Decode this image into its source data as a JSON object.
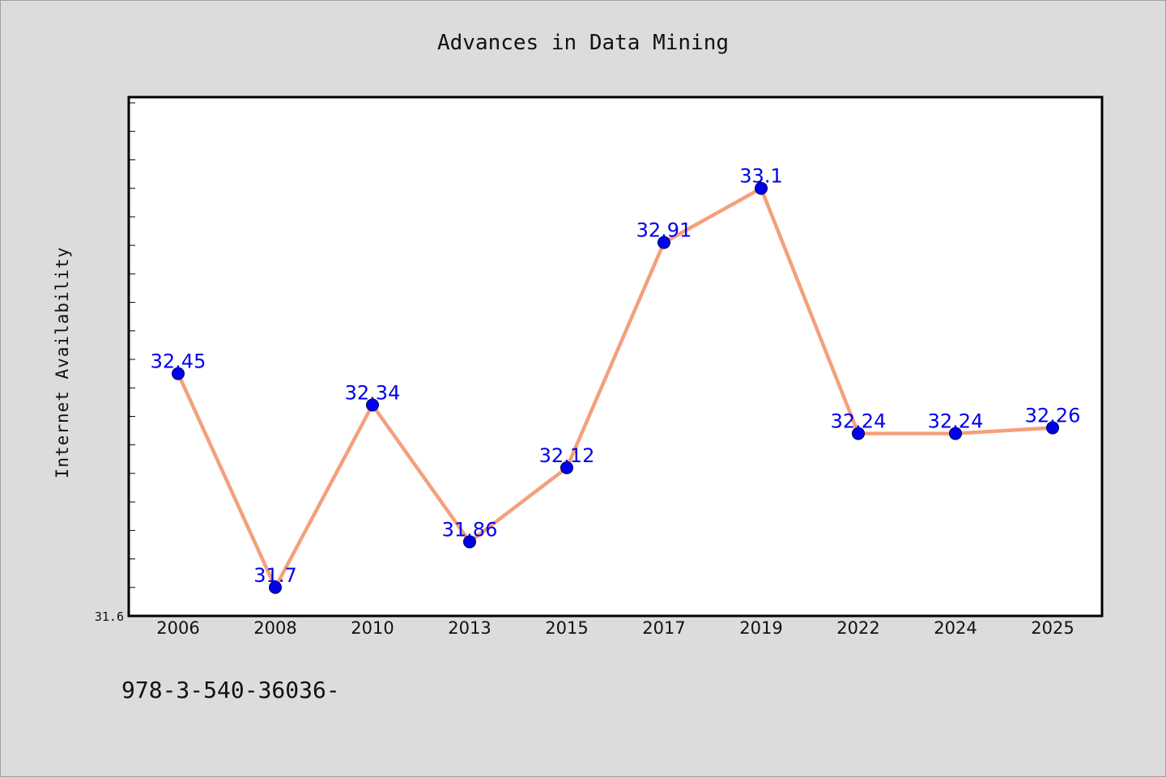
{
  "chart_data": {
    "type": "line",
    "title": "Advances in Data Mining",
    "xlabel": "",
    "ylabel": "Internet Availability",
    "categories": [
      "2006",
      "2008",
      "2010",
      "2013",
      "2015",
      "2017",
      "2019",
      "2022",
      "2024",
      "2025"
    ],
    "series": [
      {
        "values": [
          32.45,
          31.7,
          32.34,
          31.86,
          32.12,
          32.91,
          33.1,
          32.24,
          32.24,
          32.26
        ],
        "data_labels": [
          "32.45",
          "31.7",
          "32.34",
          "31.86",
          "32.12",
          "32.91",
          "33.1",
          "32.24",
          "32.24",
          "32.26"
        ]
      }
    ],
    "ylim": [
      31.6,
      33.42
    ],
    "y_tick_labels": [
      "31.6"
    ],
    "grid": false,
    "legend": "none",
    "colors": {
      "line": "#f4a07c",
      "marker": "#0000ee",
      "data_label": "#0000ee",
      "plot_background": "#ffffff",
      "figure_background": "#dcdcdc"
    }
  },
  "footer_text": "978-3-540-36036-"
}
